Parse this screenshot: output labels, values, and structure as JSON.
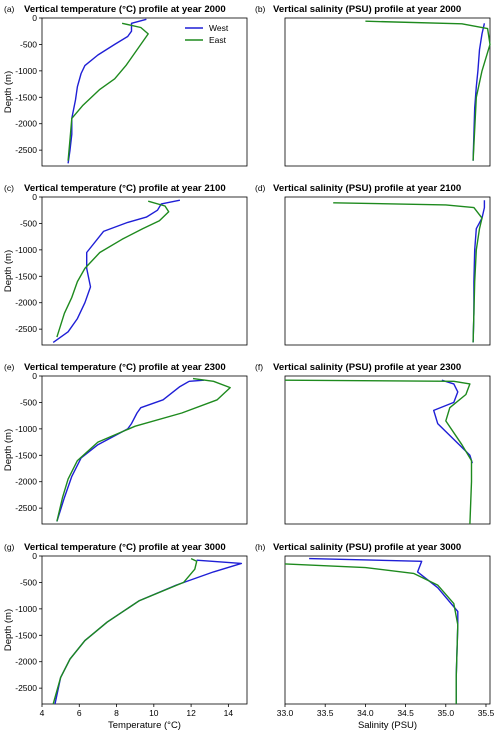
{
  "colors": {
    "west": "#1f1fd6",
    "east": "#1e8a1e"
  },
  "chart_data": [
    {
      "type": "line",
      "panel": "(a)",
      "title": "Vertical temperature (°C) profile at year 2000",
      "xlabel": "",
      "ylabel": "Depth (m)",
      "xlim": [
        4,
        15
      ],
      "ylim": [
        -2800,
        0
      ],
      "xticks": [],
      "yticks": [
        0,
        -500,
        -1000,
        -1500,
        -2000,
        -2500
      ],
      "legend": {
        "position": "top-right",
        "entries": [
          "West",
          "East"
        ]
      },
      "series": [
        {
          "name": "West",
          "x": [
            9.6,
            8.8,
            8.8,
            8.6,
            7.9,
            7.0,
            6.3,
            6.1,
            5.9,
            5.8,
            5.6,
            5.6,
            5.5,
            5.4
          ],
          "depth": [
            -25,
            -100,
            -250,
            -350,
            -500,
            -700,
            -900,
            -1050,
            -1300,
            -1550,
            -1900,
            -2200,
            -2500,
            -2750
          ]
        },
        {
          "name": "East",
          "x": [
            8.3,
            9.3,
            9.7,
            9.2,
            8.5,
            7.9,
            7.1,
            6.2,
            5.6,
            5.5,
            5.4
          ],
          "depth": [
            -100,
            -180,
            -300,
            -550,
            -900,
            -1150,
            -1350,
            -1650,
            -1900,
            -2300,
            -2700
          ]
        }
      ]
    },
    {
      "type": "line",
      "panel": "(b)",
      "title": "Vertical salinity (PSU) profile at year 2000",
      "xlabel": "",
      "ylabel": "",
      "xlim": [
        33.0,
        35.55
      ],
      "ylim": [
        -2800,
        0
      ],
      "xticks": [],
      "yticks": [],
      "series": [
        {
          "name": "West",
          "x": [
            35.48,
            35.45,
            35.42,
            35.4,
            35.38,
            35.36,
            35.35,
            35.34
          ],
          "depth": [
            -100,
            -300,
            -600,
            -1000,
            -1300,
            -1700,
            -2200,
            -2700
          ]
        },
        {
          "name": "East",
          "x": [
            34.0,
            35.2,
            35.52,
            35.55,
            35.45,
            35.38,
            35.36,
            35.34
          ],
          "depth": [
            -60,
            -110,
            -200,
            -500,
            -1000,
            -1500,
            -2100,
            -2700
          ]
        }
      ]
    },
    {
      "type": "line",
      "panel": "(c)",
      "title": "Vertical temperature (°C) profile at year 2100",
      "xlabel": "",
      "ylabel": "Depth (m)",
      "xlim": [
        4,
        15
      ],
      "ylim": [
        -2800,
        0
      ],
      "xticks": [],
      "yticks": [
        0,
        -500,
        -1000,
        -1500,
        -2000,
        -2500
      ],
      "series": [
        {
          "name": "West",
          "x": [
            11.4,
            10.4,
            10.2,
            9.6,
            8.6,
            7.3,
            6.4,
            6.4,
            6.6,
            6.3,
            5.9,
            5.4,
            4.6
          ],
          "depth": [
            -60,
            -130,
            -250,
            -380,
            -480,
            -650,
            -1050,
            -1350,
            -1700,
            -2000,
            -2300,
            -2550,
            -2750
          ]
        },
        {
          "name": "East",
          "x": [
            9.7,
            10.6,
            10.8,
            10.3,
            9.4,
            8.3,
            7.1,
            6.3,
            5.9,
            5.6,
            5.2,
            4.8
          ],
          "depth": [
            -80,
            -170,
            -280,
            -450,
            -600,
            -800,
            -1050,
            -1350,
            -1600,
            -1900,
            -2200,
            -2650
          ]
        }
      ]
    },
    {
      "type": "line",
      "panel": "(d)",
      "title": "Vertical salinity (PSU) profile at year 2100",
      "xlabel": "",
      "ylabel": "",
      "xlim": [
        33.0,
        35.55
      ],
      "ylim": [
        -2800,
        0
      ],
      "xticks": [],
      "yticks": [],
      "series": [
        {
          "name": "West",
          "x": [
            35.48,
            35.48,
            35.45,
            35.38,
            35.36,
            35.35,
            35.35,
            35.34
          ],
          "depth": [
            -60,
            -200,
            -400,
            -600,
            -1000,
            -1600,
            -2200,
            -2750
          ]
        },
        {
          "name": "East",
          "x": [
            33.6,
            35.0,
            35.35,
            35.45,
            35.42,
            35.38,
            35.36,
            35.35,
            35.34
          ],
          "depth": [
            -110,
            -150,
            -200,
            -400,
            -600,
            -1000,
            -1600,
            -2200,
            -2750
          ]
        }
      ]
    },
    {
      "type": "line",
      "panel": "(e)",
      "title": "Vertical temperature (°C) profile at year 2300",
      "xlabel": "",
      "ylabel": "Depth (m)",
      "xlim": [
        4,
        15
      ],
      "ylim": [
        -2800,
        0
      ],
      "xticks": [],
      "yticks": [
        0,
        -500,
        -1000,
        -1500,
        -2000,
        -2500
      ],
      "series": [
        {
          "name": "West",
          "x": [
            12.7,
            11.9,
            11.4,
            10.5,
            9.3,
            9.1,
            8.8,
            8.6,
            7.0,
            6.1,
            5.6,
            5.2,
            4.8
          ],
          "depth": [
            -80,
            -100,
            -200,
            -450,
            -600,
            -700,
            -900,
            -1000,
            -1300,
            -1550,
            -1900,
            -2300,
            -2750
          ]
        },
        {
          "name": "East",
          "x": [
            12.1,
            13.2,
            14.1,
            13.4,
            11.5,
            9.0,
            7.0,
            5.9,
            5.4,
            5.1,
            4.8
          ],
          "depth": [
            -50,
            -100,
            -220,
            -450,
            -700,
            -950,
            -1250,
            -1600,
            -1950,
            -2300,
            -2750
          ]
        }
      ]
    },
    {
      "type": "line",
      "panel": "(f)",
      "title": "Vertical salinity (PSU) profile at year 2300",
      "xlabel": "",
      "ylabel": "",
      "xlim": [
        33.0,
        35.55
      ],
      "ylim": [
        -2800,
        0
      ],
      "xticks": [],
      "yticks": [],
      "series": [
        {
          "name": "West",
          "x": [
            34.95,
            35.1,
            35.15,
            35.1,
            34.85,
            34.9,
            35.1,
            35.3,
            35.33
          ],
          "depth": [
            -80,
            -150,
            -300,
            -500,
            -650,
            -900,
            -1200,
            -1500,
            -1650
          ]
        },
        {
          "name": "East",
          "x": [
            33.0,
            35.1,
            35.3,
            35.25,
            35.05,
            35.0,
            35.2,
            35.32,
            35.32,
            35.31,
            35.3
          ],
          "depth": [
            -80,
            -100,
            -150,
            -350,
            -600,
            -850,
            -1300,
            -1600,
            -2000,
            -2400,
            -2800
          ]
        }
      ]
    },
    {
      "type": "line",
      "panel": "(g)",
      "title": "Vertical temperature (°C) profile at year 3000",
      "xlabel": "Temperature (°C)",
      "ylabel": "Depth (m)",
      "xlim": [
        4,
        15
      ],
      "ylim": [
        -2800,
        0
      ],
      "xticks": [
        4,
        6,
        8,
        10,
        12,
        14
      ],
      "yticks": [
        0,
        -500,
        -1000,
        -1500,
        -2000,
        -2500
      ],
      "series": [
        {
          "name": "West",
          "x": [
            12.3,
            14.7,
            13.2,
            11.2,
            9.2,
            7.5,
            6.3,
            5.5,
            5.0,
            4.7
          ],
          "depth": [
            -80,
            -140,
            -300,
            -550,
            -850,
            -1250,
            -1600,
            -1950,
            -2300,
            -2800
          ]
        },
        {
          "name": "East",
          "x": [
            12.0,
            12.3,
            12.2,
            11.6,
            9.2,
            7.5,
            6.3,
            5.5,
            5.0,
            4.6
          ],
          "depth": [
            -50,
            -100,
            -250,
            -500,
            -850,
            -1250,
            -1600,
            -1950,
            -2300,
            -2800
          ]
        }
      ]
    },
    {
      "type": "line",
      "panel": "(h)",
      "title": "Vertical salinity (PSU) profile at year 3000",
      "xlabel": "Salinity (PSU)",
      "ylabel": "",
      "xlim": [
        33.0,
        35.55
      ],
      "ylim": [
        -2800,
        0
      ],
      "xticks": [
        33.0,
        33.5,
        34.0,
        34.5,
        35.0,
        35.5
      ],
      "yticks": [],
      "series": [
        {
          "name": "West",
          "x": [
            33.3,
            34.7,
            34.65,
            34.9,
            35.15,
            35.15,
            35.14,
            35.13,
            35.13
          ],
          "depth": [
            -50,
            -100,
            -300,
            -600,
            -1050,
            -1300,
            -1800,
            -2300,
            -2800
          ]
        },
        {
          "name": "East",
          "x": [
            33.0,
            34.0,
            34.6,
            34.9,
            35.1,
            35.15,
            35.14,
            35.13,
            35.13
          ],
          "depth": [
            -150,
            -220,
            -330,
            -550,
            -900,
            -1300,
            -1800,
            -2300,
            -2800
          ]
        }
      ]
    }
  ]
}
